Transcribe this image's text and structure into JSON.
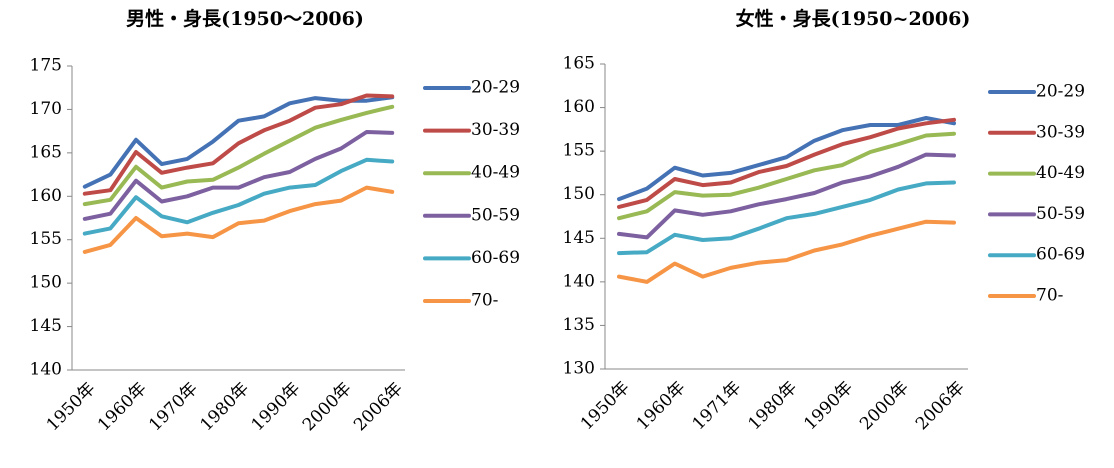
{
  "chart_data": [
    {
      "type": "line",
      "title": "男性・身長(1950～2006)",
      "categories": [
        "1950年",
        null,
        "1960年",
        null,
        "1970年",
        null,
        "1980年",
        null,
        "1990年",
        null,
        "2000年",
        null,
        "2006年"
      ],
      "ylim": [
        140,
        175
      ],
      "yticks": [
        140,
        145,
        150,
        155,
        160,
        165,
        170,
        175
      ],
      "grid": false,
      "legend": "right",
      "series": [
        {
          "name": "20-29",
          "color": "#4472b4",
          "values": [
            161.1,
            162.5,
            166.5,
            163.7,
            164.3,
            166.3,
            168.7,
            169.2,
            170.7,
            171.3,
            171.0,
            171.0,
            171.4
          ]
        },
        {
          "name": "30-39",
          "color": "#be4b48",
          "values": [
            160.3,
            160.7,
            165.1,
            162.7,
            163.3,
            163.8,
            166.1,
            167.6,
            168.7,
            170.2,
            170.6,
            171.6,
            171.5
          ]
        },
        {
          "name": "40-49",
          "color": "#98b954",
          "values": [
            159.1,
            159.6,
            163.4,
            161.0,
            161.7,
            161.9,
            163.3,
            164.9,
            166.4,
            167.9,
            168.8,
            169.6,
            170.3
          ]
        },
        {
          "name": "50-59",
          "color": "#7d60a0",
          "values": [
            157.4,
            158.0,
            161.8,
            159.4,
            160.0,
            161.0,
            161.0,
            162.2,
            162.8,
            164.3,
            165.5,
            167.4,
            167.3
          ]
        },
        {
          "name": "60-69",
          "color": "#46aac5",
          "values": [
            155.7,
            156.3,
            159.9,
            157.7,
            157.0,
            158.1,
            159.0,
            160.3,
            161.0,
            161.3,
            162.9,
            164.2,
            164.0
          ]
        },
        {
          "name": "70-",
          "color": "#f69545",
          "values": [
            153.6,
            154.4,
            157.5,
            155.4,
            155.7,
            155.3,
            156.9,
            157.2,
            158.3,
            159.1,
            159.5,
            161.0,
            160.5
          ]
        }
      ]
    },
    {
      "type": "line",
      "title": "女性・身長(1950~2006)",
      "categories": [
        "1950年",
        null,
        "1960年",
        null,
        "1971年",
        null,
        "1980年",
        null,
        "1990年",
        null,
        "2000年",
        null,
        "2006年"
      ],
      "ylim": [
        130,
        165
      ],
      "yticks": [
        130,
        135,
        140,
        145,
        150,
        155,
        160,
        165
      ],
      "grid": false,
      "legend": "right",
      "series": [
        {
          "name": "20-29",
          "color": "#4472b4",
          "values": [
            149.5,
            150.7,
            153.1,
            152.2,
            152.5,
            153.4,
            154.3,
            156.2,
            157.4,
            158.0,
            158.0,
            158.8,
            158.2
          ]
        },
        {
          "name": "30-39",
          "color": "#be4b48",
          "values": [
            148.6,
            149.4,
            151.8,
            151.1,
            151.4,
            152.6,
            153.3,
            154.6,
            155.8,
            156.6,
            157.6,
            158.2,
            158.6
          ]
        },
        {
          "name": "40-49",
          "color": "#98b954",
          "values": [
            147.3,
            148.1,
            150.3,
            149.9,
            150.0,
            150.8,
            151.8,
            152.8,
            153.4,
            154.9,
            155.8,
            156.8,
            157.0
          ]
        },
        {
          "name": "50-59",
          "color": "#7d60a0",
          "values": [
            145.5,
            145.1,
            148.2,
            147.7,
            148.1,
            148.9,
            149.5,
            150.2,
            151.4,
            152.1,
            153.2,
            154.6,
            154.5
          ]
        },
        {
          "name": "60-69",
          "color": "#46aac5",
          "values": [
            143.3,
            143.4,
            145.4,
            144.8,
            145.0,
            146.1,
            147.3,
            147.8,
            148.6,
            149.4,
            150.6,
            151.3,
            151.4
          ]
        },
        {
          "name": "70-",
          "color": "#f69545",
          "values": [
            140.6,
            140.0,
            142.1,
            140.6,
            141.6,
            142.2,
            142.5,
            143.6,
            144.3,
            145.3,
            146.1,
            146.9,
            146.8
          ]
        }
      ]
    }
  ]
}
